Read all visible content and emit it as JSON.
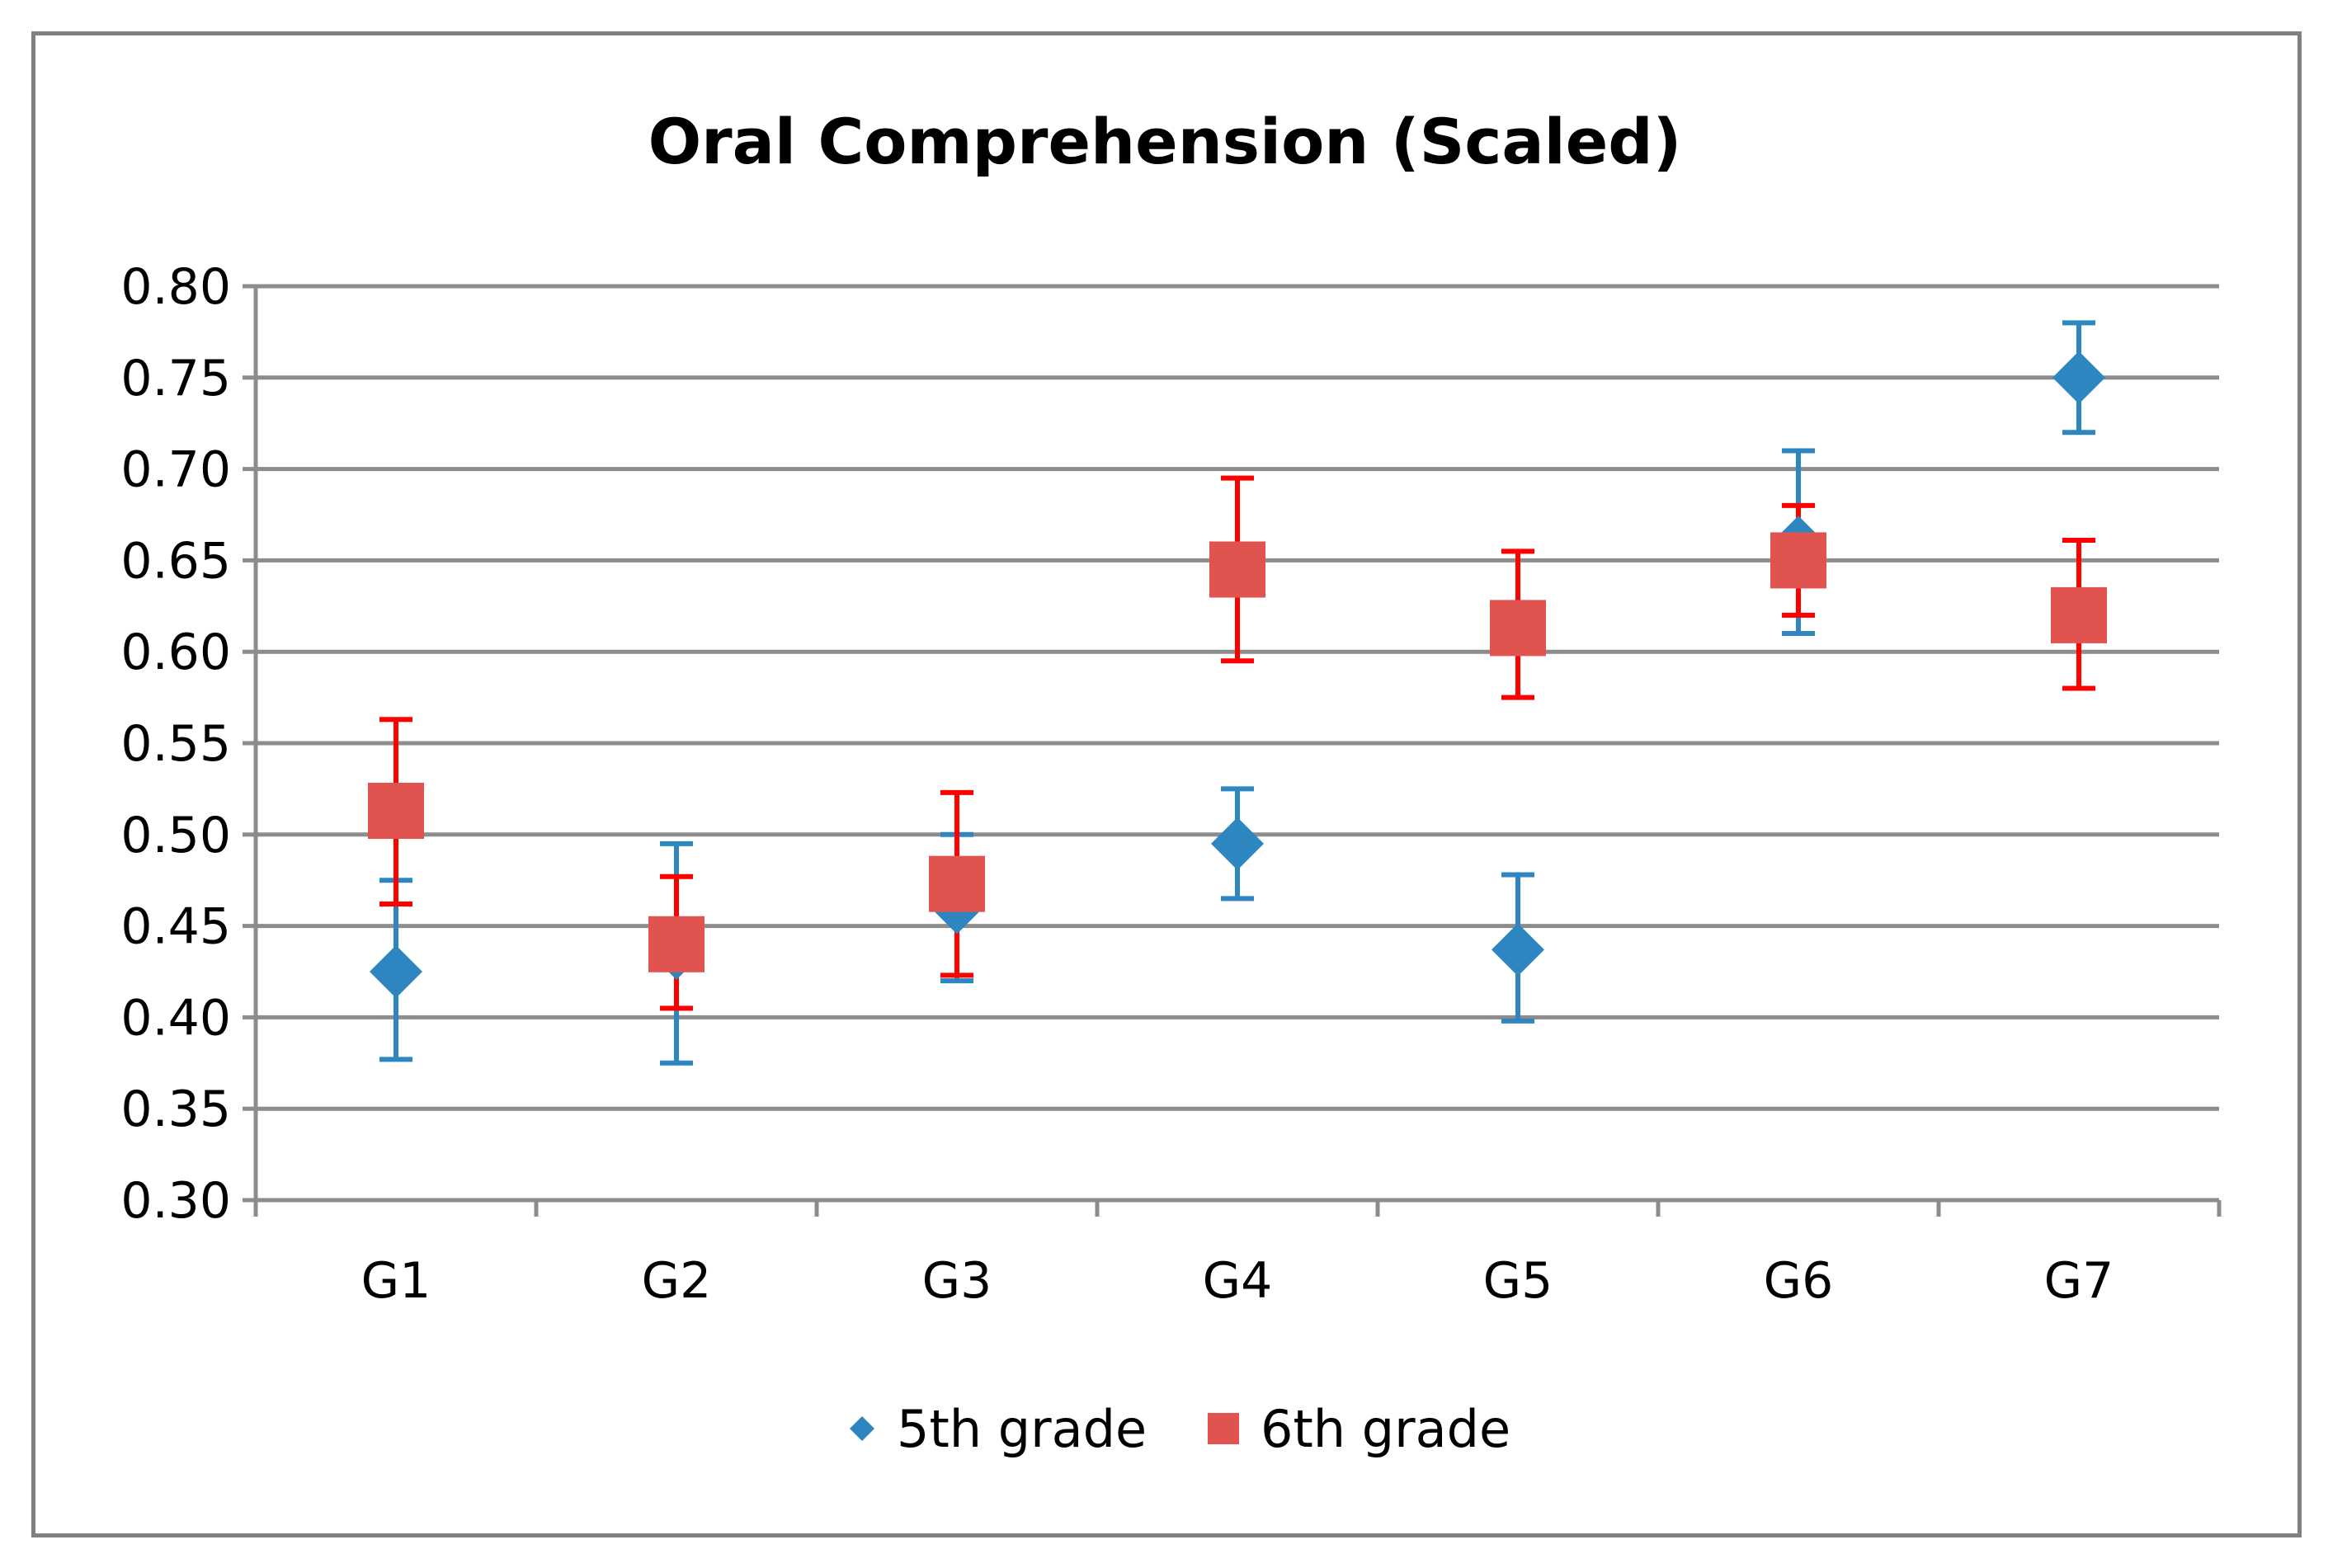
{
  "chart_data": {
    "type": "scatter",
    "title": "Oral Comprehension (Scaled)",
    "xlabel": "",
    "ylabel": "",
    "categories": [
      "G1",
      "G2",
      "G3",
      "G4",
      "G5",
      "G6",
      "G7"
    ],
    "ylim": [
      0.3,
      0.8
    ],
    "yticks": [
      "0.80",
      "0.75",
      "0.70",
      "0.65",
      "0.60",
      "0.55",
      "0.50",
      "0.45",
      "0.40",
      "0.35",
      "0.30"
    ],
    "grid": true,
    "legend_position": "bottom",
    "series": [
      {
        "name": "5th grade",
        "marker": "diamond",
        "color": "#2e86c1",
        "errorbar_color": "#2e86c1",
        "values": [
          0.425,
          0.435,
          0.46,
          0.495,
          0.437,
          0.66,
          0.75
        ],
        "err_low": [
          0.377,
          0.375,
          0.42,
          0.465,
          0.398,
          0.61,
          0.72
        ],
        "err_high": [
          0.475,
          0.495,
          0.5,
          0.525,
          0.478,
          0.71,
          0.78
        ]
      },
      {
        "name": "6th grade",
        "marker": "square",
        "color": "#e0534f",
        "errorbar_color": "#ff0000",
        "values": [
          0.513,
          0.44,
          0.473,
          0.645,
          0.613,
          0.65,
          0.62
        ],
        "err_low": [
          0.462,
          0.405,
          0.423,
          0.595,
          0.575,
          0.62,
          0.58
        ],
        "err_high": [
          0.563,
          0.477,
          0.523,
          0.695,
          0.655,
          0.68,
          0.661
        ]
      }
    ]
  }
}
